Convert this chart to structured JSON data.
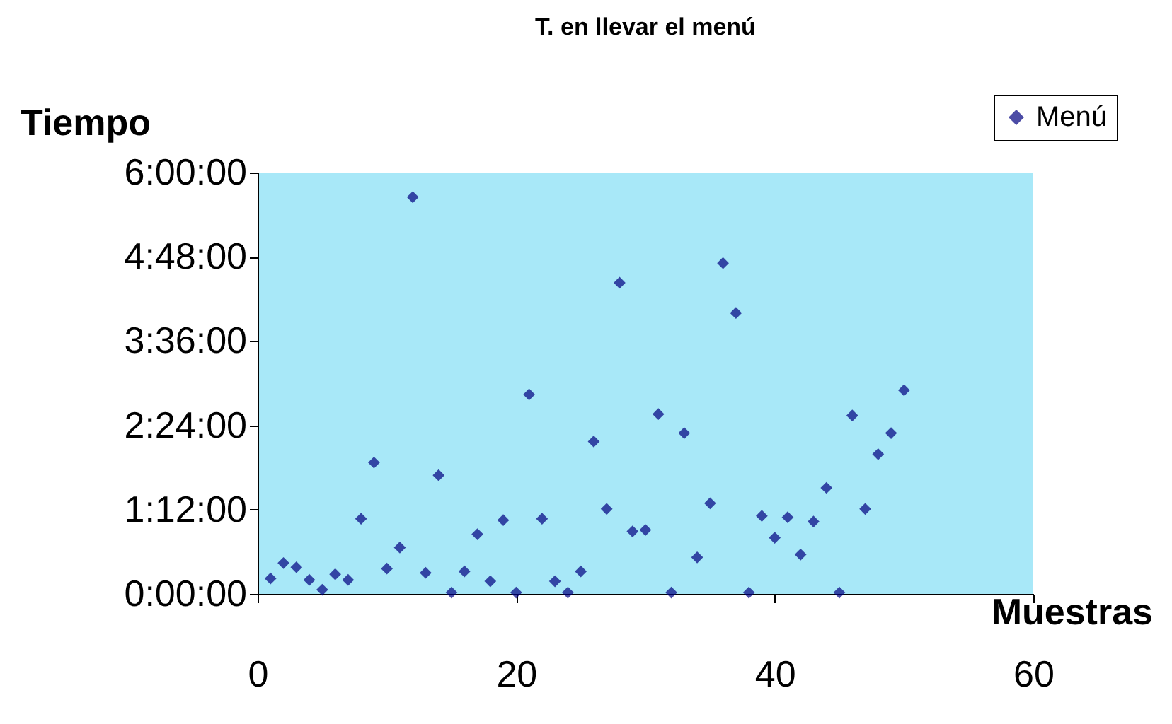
{
  "chart_data": {
    "type": "scatter",
    "title": "T. en llevar el menú",
    "xlabel": "Muestras",
    "ylabel": "Tiempo",
    "xlim": [
      0,
      60
    ],
    "xticks": [
      0,
      20,
      40,
      60
    ],
    "ylim": [
      0,
      6
    ],
    "yticks": [
      {
        "value": 0,
        "label": "0:00:00"
      },
      {
        "value": 1.2,
        "label": "1:12:00"
      },
      {
        "value": 2.4,
        "label": "2:24:00"
      },
      {
        "value": 3.6,
        "label": "3:36:00"
      },
      {
        "value": 4.8,
        "label": "4:48:00"
      },
      {
        "value": 6,
        "label": "6:00:00"
      }
    ],
    "grid": false,
    "legend": "top right",
    "marker": "diamond",
    "x": [
      1,
      2,
      3,
      4,
      5,
      6,
      7,
      8,
      9,
      10,
      11,
      12,
      13,
      14,
      15,
      16,
      17,
      18,
      19,
      20,
      21,
      22,
      23,
      24,
      25,
      26,
      27,
      28,
      29,
      30,
      31,
      32,
      33,
      34,
      35,
      36,
      37,
      38,
      39,
      40,
      41,
      42,
      43,
      44,
      45,
      46,
      47,
      48,
      49,
      50
    ],
    "series": [
      {
        "name": "Menú",
        "color": "#000080",
        "values": [
          0.22,
          0.44,
          0.38,
          0.2,
          0.06,
          0.28,
          0.2,
          1.07,
          1.87,
          0.36,
          0.66,
          5.65,
          0.3,
          1.69,
          0.02,
          0.32,
          0.85,
          0.18,
          1.05,
          0.02,
          2.84,
          1.07,
          0.18,
          0.02,
          0.32,
          2.17,
          1.21,
          4.43,
          0.89,
          0.91,
          2.56,
          0.02,
          2.29,
          0.52,
          1.29,
          4.71,
          4.0,
          0.02,
          1.11,
          0.8,
          1.09,
          0.56,
          1.03,
          1.51,
          0.02,
          2.54,
          1.21,
          1.99,
          2.29,
          2.9
        ]
      }
    ]
  }
}
